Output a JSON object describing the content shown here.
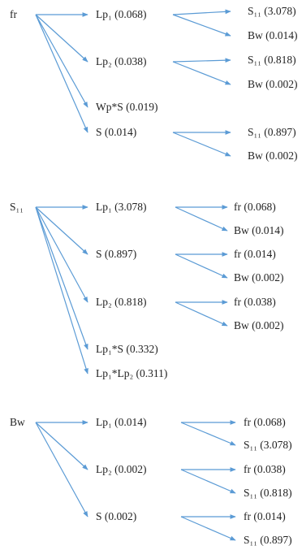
{
  "colors": {
    "arrow": "#5b9bd5",
    "text": "#1f1f1f"
  },
  "groups": [
    {
      "root": "fr",
      "children": [
        {
          "label": "Lp₁ (0.068)",
          "children": [
            "S₁₁ (3.078)",
            "Bw (0.014)"
          ]
        },
        {
          "label": "Lp₂ (0.038)",
          "children": [
            "S₁₁ (0.818)",
            "Bw (0.002)"
          ]
        },
        {
          "label": "Wp*S (0.019)",
          "children": []
        },
        {
          "label": "S (0.014)",
          "children": [
            "S₁₁ (0.897)",
            "Bw (0.002)"
          ]
        }
      ]
    },
    {
      "root": "S₁₁",
      "children": [
        {
          "label": "Lp₁ (3.078)",
          "children": [
            "fr (0.068)",
            "Bw (0.014)"
          ]
        },
        {
          "label": "S (0.897)",
          "children": [
            "fr (0.014)",
            "Bw (0.002)"
          ]
        },
        {
          "label": "Lp₂ (0.818)",
          "children": [
            "fr (0.038)",
            "Bw (0.002)"
          ]
        },
        {
          "label": "Lp₁*S (0.332)",
          "children": []
        },
        {
          "label": "Lp₁*Lp₂ (0.311)",
          "children": []
        }
      ]
    },
    {
      "root": "Bw",
      "children": [
        {
          "label": "Lp₁ (0.014)",
          "children": [
            "fr (0.068)",
            "S₁₁ (3.078)"
          ]
        },
        {
          "label": "Lp₂ (0.002)",
          "children": [
            "fr (0.038)",
            "S₁₁ (0.818)"
          ]
        },
        {
          "label": "S (0.002)",
          "children": [
            "fr (0.014)",
            "S₁₁ (0.897)"
          ]
        }
      ]
    }
  ]
}
